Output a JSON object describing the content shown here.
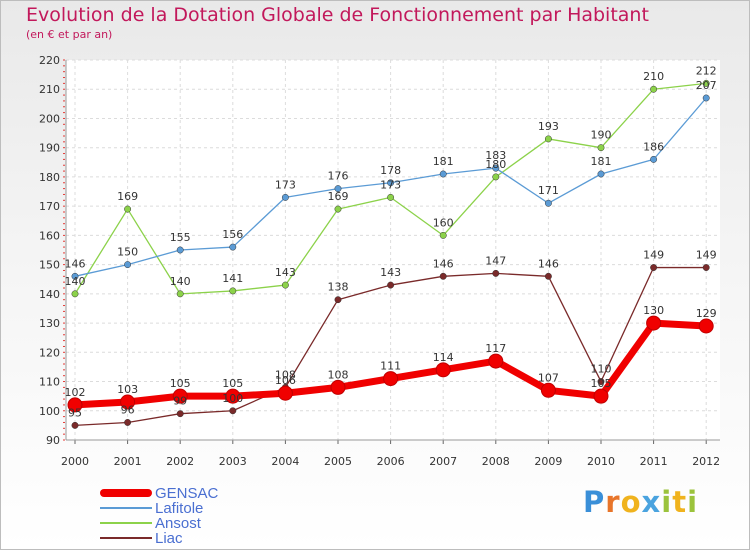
{
  "title": "Evolution de la Dotation Globale de Fonctionnement par Habitant",
  "subtitle": "(en € et par an)",
  "brand": {
    "text": "Proxiti",
    "letter_colors": [
      "#3a8fd8",
      "#e8752a",
      "#f0b31e",
      "#4aa3df",
      "#9bc33c",
      "#f0b31e",
      "#9bc33c"
    ]
  },
  "chart_data": {
    "type": "line",
    "x": [
      "2000",
      "2001",
      "2002",
      "2003",
      "2004",
      "2005",
      "2006",
      "2007",
      "2008",
      "2009",
      "2010",
      "2011",
      "2012"
    ],
    "ylim": [
      90,
      220
    ],
    "yticks": [
      90,
      100,
      110,
      120,
      130,
      140,
      150,
      160,
      170,
      180,
      190,
      200,
      210,
      220
    ],
    "grid": true,
    "legend_position": "bottom-left",
    "series": [
      {
        "name": "GENSAC",
        "color": "#f00000",
        "values": [
          102,
          103,
          105,
          105,
          106,
          108,
          111,
          114,
          117,
          107,
          105,
          130,
          129
        ],
        "labels": [
          "102",
          "103",
          "105",
          "105",
          "106",
          "108",
          "111",
          "114",
          "117",
          "107",
          "105",
          "130",
          "129"
        ]
      },
      {
        "name": "Lafitole",
        "color": "#5b9bd5",
        "values": [
          146,
          150,
          155,
          156,
          173,
          176,
          178,
          181,
          183,
          171,
          181,
          186,
          207
        ],
        "labels": [
          "146",
          "150",
          "155",
          "156",
          "173",
          "176",
          "178",
          "181",
          "183",
          "171",
          "181",
          "186",
          "207"
        ]
      },
      {
        "name": "Ansost",
        "color": "#8cd24a",
        "values": [
          140,
          169,
          140,
          141,
          143,
          169,
          173,
          160,
          180,
          193,
          190,
          210,
          212
        ],
        "labels": [
          "140",
          "169",
          "140",
          "141",
          "143",
          "169",
          "173",
          "160",
          "180",
          "193",
          "190",
          "210",
          "212"
        ]
      },
      {
        "name": "Liac",
        "color": "#7a2a2a",
        "values": [
          95,
          96,
          99,
          100,
          108,
          138,
          143,
          146,
          147,
          146,
          110,
          149,
          149
        ],
        "labels": [
          "95",
          "96",
          "99",
          "100",
          "108",
          "138",
          "143",
          "146",
          "147",
          "146",
          "110",
          "149",
          "149"
        ]
      }
    ]
  }
}
